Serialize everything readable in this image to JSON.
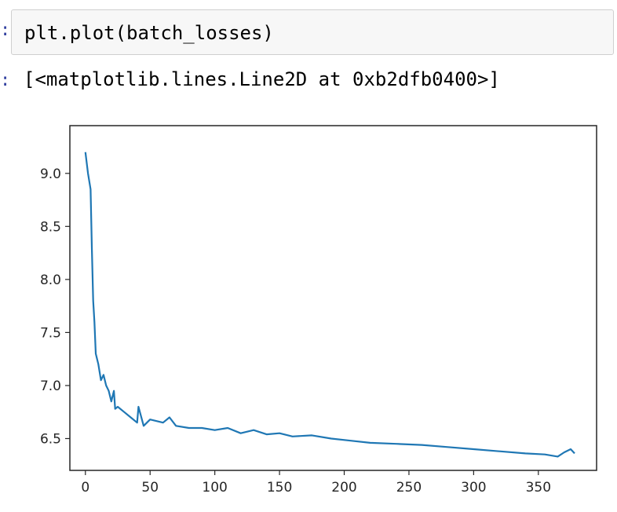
{
  "notebook": {
    "input_code": "plt.plot(batch_losses)",
    "output_text": "[<matplotlib.lines.Line2D at 0xb2dfb0400>]"
  },
  "chart_data": {
    "type": "line",
    "x_ticks": [
      "0",
      "50",
      "100",
      "150",
      "200",
      "250",
      "300",
      "350"
    ],
    "y_ticks": [
      "6.5",
      "7.0",
      "7.5",
      "8.0",
      "8.5",
      "9.0"
    ],
    "xlim": [
      -12,
      395
    ],
    "ylim": [
      6.2,
      9.45
    ],
    "grid": false,
    "line_color": "#1f77b4",
    "series": [
      {
        "x": [
          0,
          2,
          4,
          5,
          6,
          7,
          8,
          10,
          12,
          14,
          16,
          18,
          20,
          22,
          23,
          25,
          30,
          35,
          40,
          41,
          45,
          50,
          60,
          65,
          70,
          80,
          90,
          100,
          110,
          120,
          130,
          140,
          150,
          160,
          175,
          190,
          205,
          220,
          240,
          260,
          280,
          300,
          320,
          340,
          355,
          365,
          370,
          375,
          378
        ],
        "y": [
          9.2,
          9.0,
          8.85,
          8.3,
          7.8,
          7.6,
          7.3,
          7.2,
          7.05,
          7.1,
          7.0,
          6.95,
          6.85,
          6.95,
          6.78,
          6.8,
          6.75,
          6.7,
          6.65,
          6.8,
          6.62,
          6.68,
          6.65,
          6.7,
          6.62,
          6.6,
          6.6,
          6.58,
          6.6,
          6.55,
          6.58,
          6.54,
          6.55,
          6.52,
          6.53,
          6.5,
          6.48,
          6.46,
          6.45,
          6.44,
          6.42,
          6.4,
          6.38,
          6.36,
          6.35,
          6.33,
          6.37,
          6.4,
          6.36
        ]
      }
    ]
  }
}
